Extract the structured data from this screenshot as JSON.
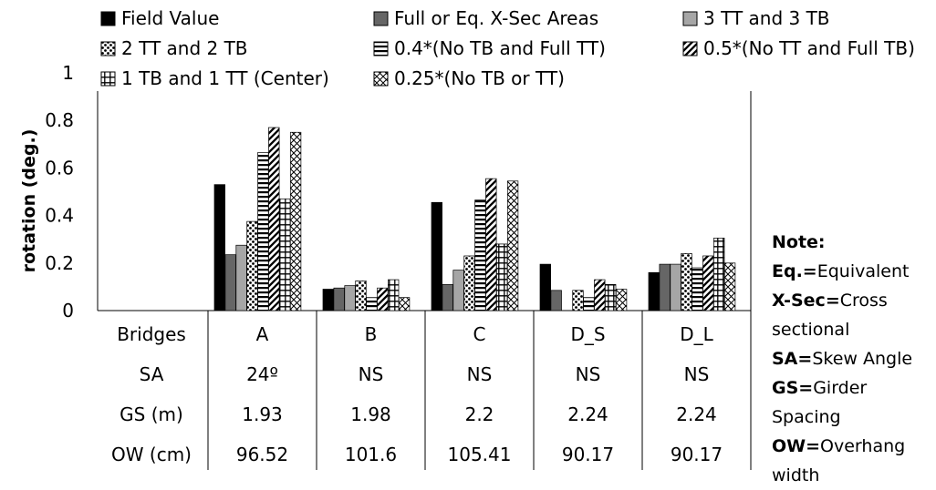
{
  "chart_data": {
    "type": "bar",
    "categories": [
      "A",
      "B",
      "C",
      "D_S",
      "D_L"
    ],
    "ylabel": "rotation (deg.)",
    "ylim": [
      0,
      1
    ],
    "yticks": [
      "0",
      "0.2",
      "0.4",
      "0.6",
      "0.8",
      "1"
    ],
    "grid": false,
    "legend_position": "top",
    "series": [
      {
        "name": "Field Value",
        "pattern": "solid-black",
        "values": [
          0.53,
          0.09,
          0.455,
          0.195,
          0.16
        ]
      },
      {
        "name": "Full or Eq. X-Sec Areas",
        "pattern": "solid-dark-gray",
        "values": [
          0.235,
          0.095,
          0.11,
          0.085,
          0.195
        ]
      },
      {
        "name": "3 TT and 3 TB",
        "pattern": "solid-light-gray",
        "values": [
          0.275,
          0.105,
          0.17,
          0.0,
          0.195
        ]
      },
      {
        "name": "2 TT and 2 TB",
        "pattern": "dots",
        "values": [
          0.375,
          0.125,
          0.23,
          0.085,
          0.24
        ]
      },
      {
        "name": "0.4*(No TB and Full TT)",
        "pattern": "horizontal-lines",
        "values": [
          0.665,
          0.055,
          0.465,
          0.055,
          0.18
        ]
      },
      {
        "name": "0.5*(No TT and Full TB)",
        "pattern": "diagonal-lines",
        "values": [
          0.77,
          0.095,
          0.555,
          0.13,
          0.23
        ]
      },
      {
        "name": "1 TB and 1 TT (Center)",
        "pattern": "grid",
        "values": [
          0.47,
          0.13,
          0.28,
          0.11,
          0.305
        ]
      },
      {
        "name": "0.25*(No TB or TT)",
        "pattern": "crosshatch",
        "values": [
          0.75,
          0.055,
          0.545,
          0.09,
          0.2
        ]
      }
    ],
    "table": {
      "header_col": "Bridges",
      "rows": [
        {
          "label": "SA",
          "values": [
            "24º",
            "NS",
            "NS",
            "NS",
            "NS"
          ]
        },
        {
          "label": "GS (m)",
          "values": [
            "1.93",
            "1.98",
            "2.2",
            "2.24",
            "2.24"
          ]
        },
        {
          "label": "OW (cm)",
          "values": [
            "96.52",
            "101.6",
            "105.41",
            "90.17",
            "90.17"
          ]
        }
      ]
    }
  },
  "note": {
    "title": "Note:",
    "entries": [
      {
        "key": "Eq.=",
        "text": "Equivalent"
      },
      {
        "key": "X-Sec=",
        "text": "Cross sectional"
      },
      {
        "key": "SA=",
        "text": "Skew Angle"
      },
      {
        "key": "GS=",
        "text": "Girder Spacing"
      },
      {
        "key": "OW=",
        "text": "Overhang width"
      }
    ]
  }
}
